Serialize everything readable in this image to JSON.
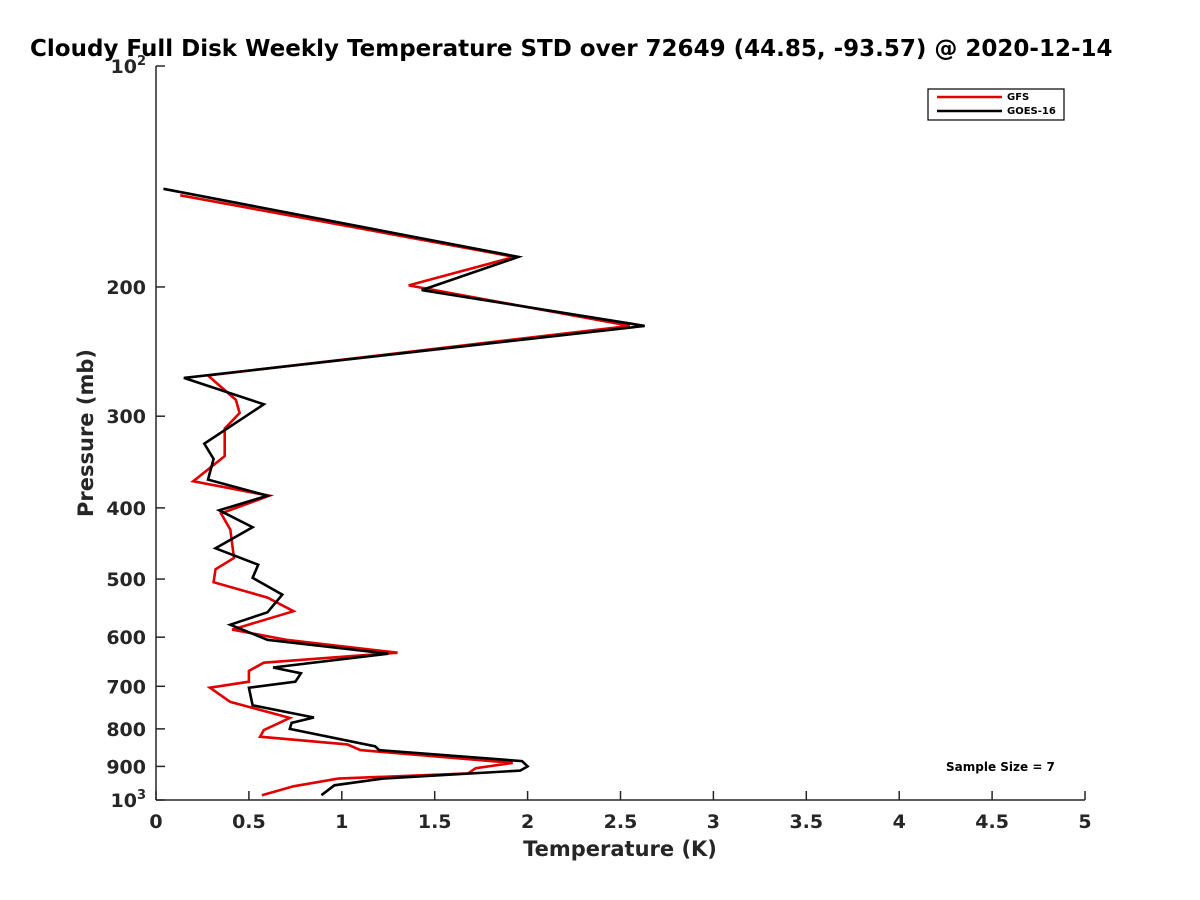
{
  "chart_data": {
    "type": "line",
    "title": "Cloudy Full Disk Weekly Temperature STD over 72649 (44.85, -93.57) @ 2020-12-14",
    "xlabel": "Temperature (K)",
    "ylabel": "Pressure (mb)",
    "xlim": [
      0,
      5
    ],
    "ylim": [
      100,
      1000
    ],
    "y_scale": "log",
    "y_reversed": true,
    "x_ticks": [
      "0",
      "0.5",
      "1",
      "1.5",
      "2",
      "2.5",
      "3",
      "3.5",
      "4",
      "4.5",
      "5"
    ],
    "x_tick_values": [
      0,
      0.5,
      1,
      1.5,
      2,
      2.5,
      3,
      3.5,
      4,
      4.5,
      5
    ],
    "y_ticks": [
      {
        "value": 100,
        "base": "10",
        "exp": "2"
      },
      {
        "value": 200,
        "label": "200"
      },
      {
        "value": 300,
        "label": "300"
      },
      {
        "value": 400,
        "label": "400"
      },
      {
        "value": 500,
        "label": "500"
      },
      {
        "value": 600,
        "label": "600"
      },
      {
        "value": 700,
        "label": "700"
      },
      {
        "value": 800,
        "label": "800"
      },
      {
        "value": 900,
        "label": "900"
      },
      {
        "value": 1000,
        "base": "10",
        "exp": "3"
      }
    ],
    "grid": false,
    "legend_position": "top-right",
    "annotation": "Sample Size = 7",
    "series": [
      {
        "name": "GFS",
        "color": "#e00000",
        "points": [
          [
            0.13,
            150
          ],
          [
            1.93,
            182
          ],
          [
            1.36,
            199
          ],
          [
            2.55,
            226
          ],
          [
            0.28,
            264
          ],
          [
            0.43,
            285
          ],
          [
            0.45,
            297
          ],
          [
            0.37,
            312
          ],
          [
            0.37,
            340
          ],
          [
            0.2,
            368
          ],
          [
            0.61,
            385
          ],
          [
            0.35,
            407
          ],
          [
            0.4,
            428
          ],
          [
            0.42,
            468
          ],
          [
            0.32,
            485
          ],
          [
            0.31,
            505
          ],
          [
            0.6,
            530
          ],
          [
            0.74,
            553
          ],
          [
            0.41,
            586
          ],
          [
            0.7,
            605
          ],
          [
            1.3,
            630
          ],
          [
            0.58,
            650
          ],
          [
            0.5,
            667
          ],
          [
            0.5,
            690
          ],
          [
            0.29,
            703
          ],
          [
            0.4,
            735
          ],
          [
            0.72,
            773
          ],
          [
            0.58,
            803
          ],
          [
            0.56,
            820
          ],
          [
            1.03,
            840
          ],
          [
            1.1,
            855
          ],
          [
            1.92,
            890
          ],
          [
            1.72,
            905
          ],
          [
            1.68,
            920
          ],
          [
            0.98,
            935
          ],
          [
            0.74,
            958
          ],
          [
            0.57,
            985
          ]
        ]
      },
      {
        "name": "GOES-16",
        "color": "#000000",
        "points": [
          [
            0.04,
            147
          ],
          [
            1.95,
            182
          ],
          [
            1.43,
            202
          ],
          [
            2.63,
            226
          ],
          [
            0.15,
            266
          ],
          [
            0.58,
            289
          ],
          [
            0.26,
            327
          ],
          [
            0.31,
            343
          ],
          [
            0.28,
            366
          ],
          [
            0.6,
            385
          ],
          [
            0.34,
            403
          ],
          [
            0.52,
            425
          ],
          [
            0.32,
            454
          ],
          [
            0.55,
            478
          ],
          [
            0.52,
            498
          ],
          [
            0.68,
            525
          ],
          [
            0.6,
            555
          ],
          [
            0.4,
            577
          ],
          [
            0.6,
            605
          ],
          [
            1.25,
            632
          ],
          [
            0.63,
            660
          ],
          [
            0.78,
            672
          ],
          [
            0.75,
            690
          ],
          [
            0.5,
            703
          ],
          [
            0.52,
            743
          ],
          [
            0.85,
            772
          ],
          [
            0.73,
            785
          ],
          [
            0.72,
            800
          ],
          [
            1.18,
            845
          ],
          [
            1.2,
            855
          ],
          [
            1.97,
            885
          ],
          [
            2.0,
            900
          ],
          [
            1.96,
            912
          ],
          [
            1.22,
            935
          ],
          [
            0.96,
            955
          ],
          [
            0.89,
            985
          ]
        ]
      }
    ]
  }
}
